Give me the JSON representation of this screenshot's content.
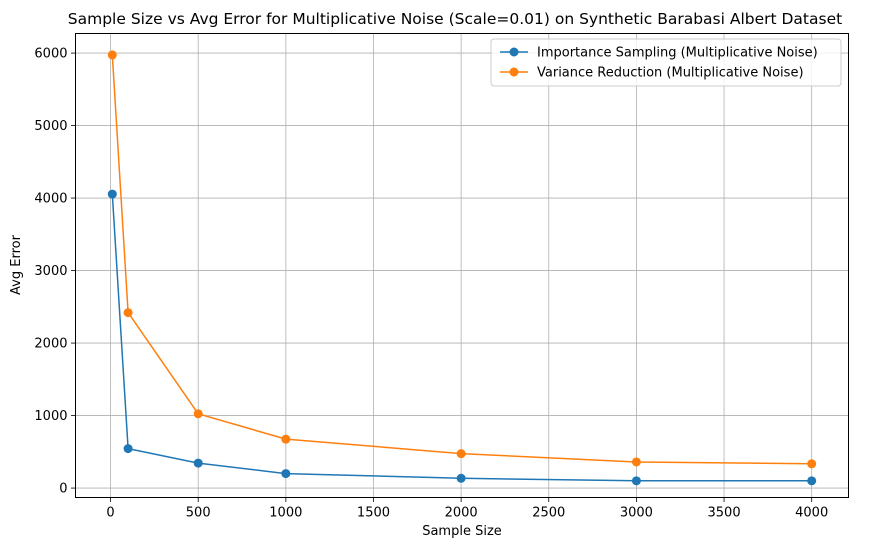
{
  "chart_data": {
    "type": "line",
    "title": "Sample Size vs Avg Error for Multiplicative Noise (Scale=0.01) on Synthetic Barabasi Albert Dataset",
    "xlabel": "Sample Size",
    "ylabel": "Avg Error",
    "x": [
      10,
      100,
      500,
      1000,
      2000,
      3000,
      4000
    ],
    "xlim": [
      -200,
      4210
    ],
    "ylim": [
      -130,
      6270
    ],
    "xticks": [
      0,
      500,
      1000,
      1500,
      2000,
      2500,
      3000,
      3500,
      4000
    ],
    "yticks": [
      0,
      1000,
      2000,
      3000,
      4000,
      5000,
      6000
    ],
    "grid": true,
    "legend_position": "upper right",
    "series": [
      {
        "name": "Importance Sampling (Multiplicative Noise)",
        "color": "#1f77b4",
        "marker": "circle",
        "values": [
          4055,
          545,
          345,
          200,
          135,
          100,
          100
        ]
      },
      {
        "name": "Variance Reduction (Multiplicative Noise)",
        "color": "#ff7f0e",
        "marker": "circle",
        "values": [
          5975,
          2420,
          1025,
          675,
          475,
          360,
          335
        ]
      }
    ]
  }
}
